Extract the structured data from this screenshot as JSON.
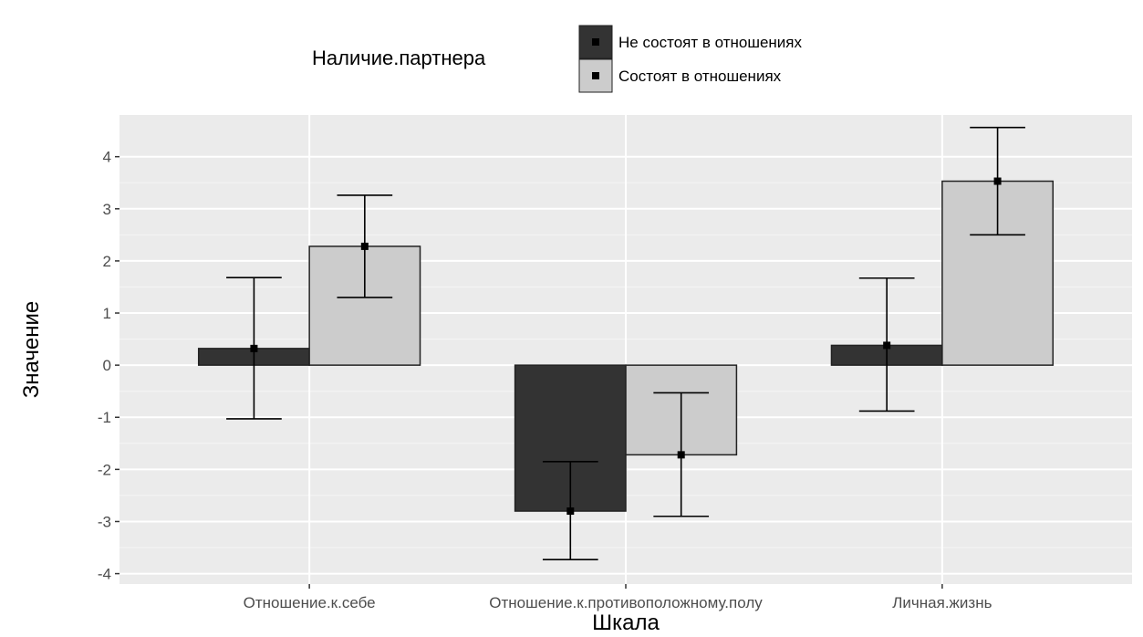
{
  "chart_data": {
    "type": "bar",
    "xlabel": "Шкала",
    "ylabel": "Значение",
    "ylim": [
      -4.2,
      4.8
    ],
    "yticks": [
      -4,
      -3,
      -2,
      -1,
      0,
      1,
      2,
      3,
      4
    ],
    "categories": [
      "Отношение.к.себе",
      "Отношение.к.противоположному.полу",
      "Личная.жизнь"
    ],
    "legend": {
      "title": "Наличие.партнера",
      "placement": "top"
    },
    "grid": true,
    "error_bars": true,
    "series": [
      {
        "name": "Не состоят в отношениях",
        "color": "#333333",
        "values": [
          0.32,
          -2.8,
          0.38
        ],
        "error_low": [
          -1.03,
          -3.73,
          -0.88
        ],
        "error_high": [
          1.68,
          -1.85,
          1.67
        ]
      },
      {
        "name": "Состоят в отношениях",
        "color": "#cccccc",
        "values": [
          2.28,
          -1.72,
          3.53
        ],
        "error_low": [
          1.3,
          -2.9,
          2.5
        ],
        "error_high": [
          3.26,
          -0.53,
          4.56
        ]
      }
    ]
  }
}
